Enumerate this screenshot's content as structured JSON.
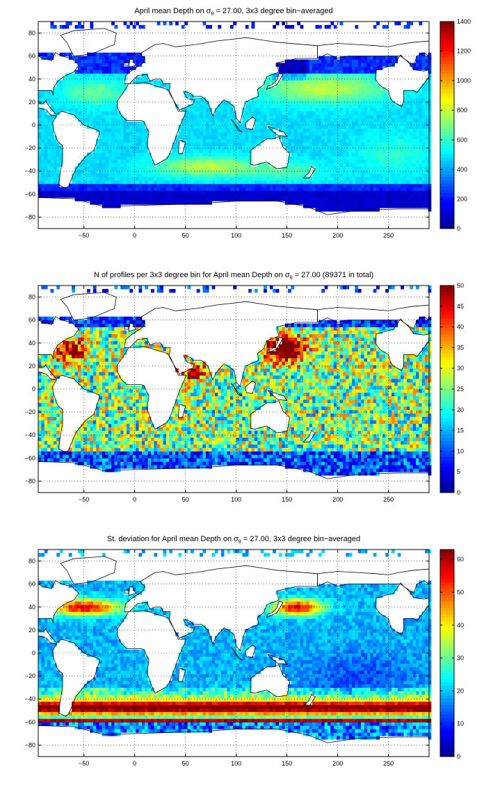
{
  "colormap": [
    "#00008f",
    "#0000ff",
    "#0080ff",
    "#00ffff",
    "#80ff80",
    "#ffff00",
    "#ff8000",
    "#ff0000",
    "#800000"
  ],
  "land_color": "#ffffff",
  "frame_color": "#000000",
  "chart_data": [
    {
      "type": "heatmap",
      "title_prefix": "April mean Depth on ",
      "title_symbol": "σ",
      "title_subscript": "θ",
      "title_suffix": " = 27.00, 3x3 degree bin−averaged",
      "xlim": [
        -95,
        290
      ],
      "ylim": [
        -90,
        90
      ],
      "xticks": [
        -50,
        0,
        50,
        100,
        150,
        200,
        250
      ],
      "yticks": [
        -80,
        -60,
        -40,
        -20,
        0,
        20,
        40,
        60,
        80
      ],
      "grid": true,
      "bin_size_deg": 3,
      "colorbar": {
        "min": 0,
        "max": 1400,
        "ticks": [
          0,
          200,
          400,
          600,
          800,
          1000,
          1200,
          1400
        ]
      },
      "field_summary": "Mostly 400–600 over ocean; 700–900 bands near 25–45°N North Pacific/Atlantic subtropical gyres and 30–45°S South Indian Ocean; drops to <200 near 55–65°S (Southern Ocean) and high northern latitudes"
    },
    {
      "type": "heatmap",
      "title_prefix": "N of profiles per 3x3 degree bin for April mean Depth on ",
      "title_symbol": "σ",
      "title_subscript": "θ",
      "title_suffix": " = 27.00 (89371 in total)",
      "xlim": [
        -95,
        290
      ],
      "ylim": [
        -90,
        90
      ],
      "xticks": [
        -50,
        0,
        50,
        100,
        150,
        200,
        250
      ],
      "yticks": [
        -80,
        -60,
        -40,
        -20,
        0,
        20,
        40,
        60,
        80
      ],
      "grid": true,
      "bin_size_deg": 3,
      "total_profiles": 89371,
      "colorbar": {
        "min": 0,
        "max": 50,
        "ticks": [
          0,
          5,
          10,
          15,
          20,
          25,
          30,
          35,
          40,
          45,
          50
        ]
      },
      "field_summary": "Noisy 10–40 profiles per bin; saturated (≥50) around Japan/Kuroshio 25–45°N 130–160E, western North Atlantic, Arabian Sea; low (<10) at ocean margins and south of 55°S"
    },
    {
      "type": "heatmap",
      "title_prefix": "St. deviation for April mean Depth on ",
      "title_symbol": "σ",
      "title_subscript": "θ",
      "title_suffix": " = 27.00, 3x3 degree bin−averaged",
      "xlim": [
        -95,
        290
      ],
      "ylim": [
        -90,
        90
      ],
      "xticks": [
        -50,
        0,
        50,
        100,
        150,
        200,
        250
      ],
      "yticks": [
        -80,
        -60,
        -40,
        -20,
        0,
        20,
        40,
        60,
        80
      ],
      "grid": true,
      "bin_size_deg": 3,
      "colorbar": {
        "min": 0,
        "max": 63,
        "ticks": [
          0,
          10,
          20,
          30,
          40,
          50,
          60
        ]
      },
      "field_summary": "Mostly 15–25; high (≥60) along the Antarctic Circumpolar Current 40–55°S, Kuroshio Extension ~35–45°N, Gulf Stream ~35–45°N; low in subtropical South Pacific"
    }
  ]
}
